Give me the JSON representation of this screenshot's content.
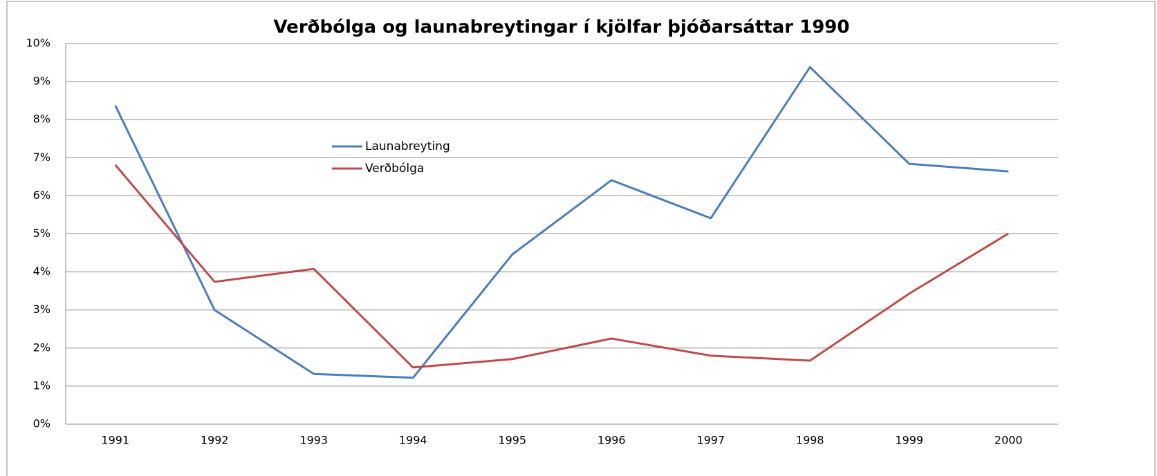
{
  "chart_data": {
    "type": "line",
    "title": "Verðbólga og launabreytingar í kjölfar þjóðarsáttar 1990",
    "categories": [
      "1991",
      "1992",
      "1993",
      "1994",
      "1995",
      "1996",
      "1997",
      "1998",
      "1999",
      "2000"
    ],
    "series": [
      {
        "name": "Launabreyting",
        "color": "#4a7ebb",
        "values": [
          8.37,
          3.0,
          1.32,
          1.22,
          4.46,
          6.41,
          5.41,
          9.38,
          6.84,
          6.64
        ]
      },
      {
        "name": "Verðbólga",
        "color": "#be4b48",
        "values": [
          6.81,
          3.74,
          4.08,
          1.49,
          1.71,
          2.25,
          1.8,
          1.67,
          3.43,
          5.01
        ]
      }
    ],
    "ylim": [
      0,
      10
    ],
    "yticks": [
      {
        "value": 0,
        "label": "0%"
      },
      {
        "value": 1,
        "label": "1%"
      },
      {
        "value": 2,
        "label": "2%"
      },
      {
        "value": 3,
        "label": "3%"
      },
      {
        "value": 4,
        "label": "4%"
      },
      {
        "value": 5,
        "label": "5%"
      },
      {
        "value": 6,
        "label": "6%"
      },
      {
        "value": 7,
        "label": "7%"
      },
      {
        "value": 8,
        "label": "8%"
      },
      {
        "value": 9,
        "label": "9%"
      },
      {
        "value": 10,
        "label": "10%"
      }
    ],
    "grid": true
  }
}
